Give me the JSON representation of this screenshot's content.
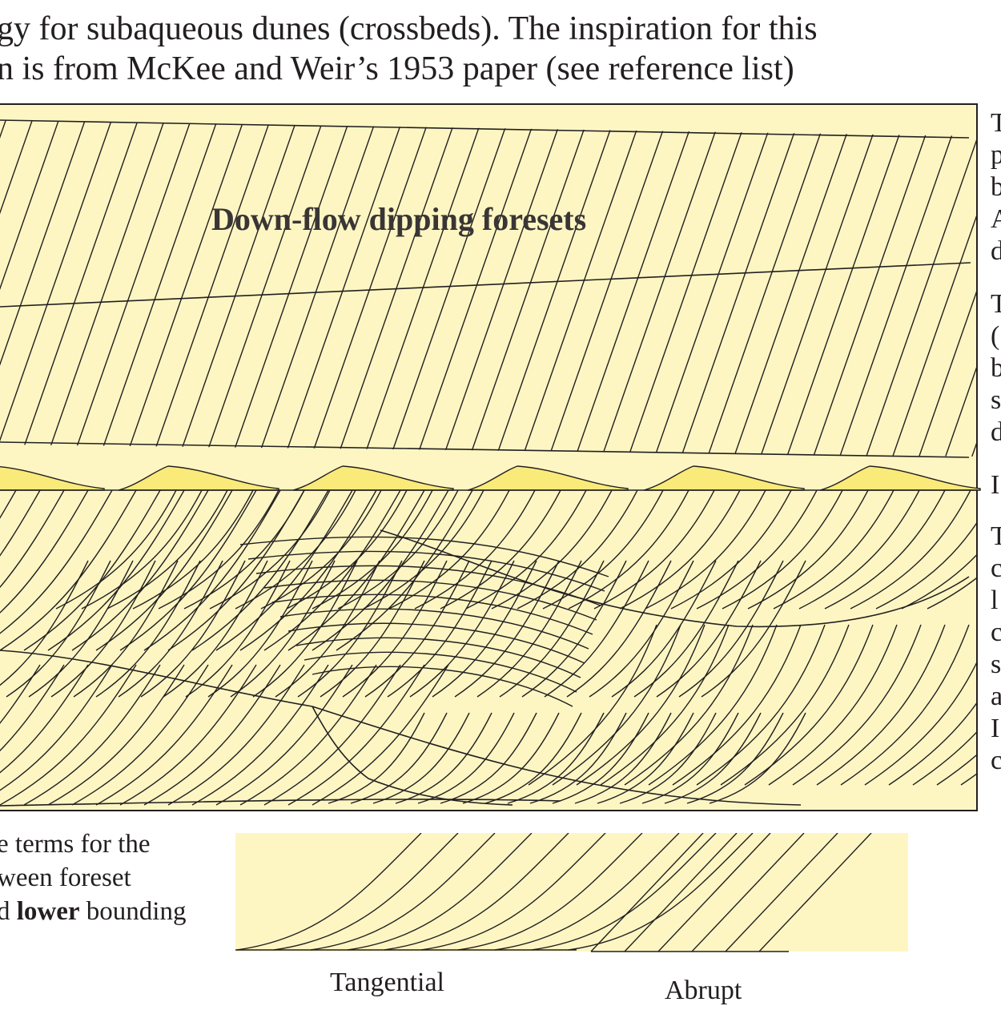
{
  "heading": {
    "line1": "gy for subaqueous dunes (crossbeds). The inspiration for this",
    "line2": "n is from McKee and Weir’s 1953 paper (see reference list)"
  },
  "diagram": {
    "label": "Down-flow dipping foresets"
  },
  "side_letters": [
    "T",
    "p",
    "b",
    "A",
    "d",
    "T",
    "(",
    "b",
    "s",
    "d",
    "I",
    "T",
    "c",
    "l",
    "c",
    "s",
    "a",
    "I",
    "c"
  ],
  "caption": {
    "line1": "e terms for the",
    "line2": "ween foreset",
    "line3_prefix": "d ",
    "line3_bold": "lower",
    "line3_suffix": " bounding"
  },
  "terms": {
    "tangential": "Tangential",
    "abrupt": "Abrupt"
  },
  "colors": {
    "panel_fill": "#fdf6c3",
    "dune_fill": "#f9ea7a",
    "line": "#231f20"
  }
}
